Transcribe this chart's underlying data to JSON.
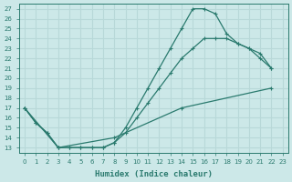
{
  "xlabel": "Humidex (Indice chaleur)",
  "xlim": [
    -0.5,
    23.5
  ],
  "ylim": [
    12.5,
    27.5
  ],
  "yticks": [
    13,
    14,
    15,
    16,
    17,
    18,
    19,
    20,
    21,
    22,
    23,
    24,
    25,
    26,
    27
  ],
  "xticks": [
    0,
    1,
    2,
    3,
    4,
    5,
    6,
    7,
    8,
    9,
    10,
    11,
    12,
    13,
    14,
    15,
    16,
    17,
    18,
    19,
    20,
    21,
    22,
    23
  ],
  "bg_color": "#cce8e8",
  "grid_color": "#b8d8d8",
  "line_color": "#2a7a6e",
  "line1_x": [
    0,
    1,
    2,
    3,
    4,
    5,
    6,
    7,
    8,
    9,
    10,
    11,
    12,
    13,
    14,
    15,
    16,
    17,
    18,
    19,
    20,
    21,
    22
  ],
  "line1_y": [
    17,
    15.5,
    14.5,
    13,
    13,
    13,
    13,
    13,
    13.5,
    15,
    17,
    19,
    21,
    23,
    25,
    27,
    27,
    26.5,
    24.5,
    23.5,
    23,
    22.5,
    21
  ],
  "line2_x": [
    0,
    1,
    2,
    3,
    4,
    5,
    6,
    7,
    8,
    9,
    10,
    11,
    12,
    13,
    14,
    15,
    16,
    17,
    18,
    19,
    20,
    21,
    22
  ],
  "line2_y": [
    17,
    15.5,
    14.5,
    13,
    13,
    13,
    13,
    13,
    13.5,
    14.5,
    16,
    17.5,
    19,
    20.5,
    22,
    23,
    24,
    24,
    24,
    23.5,
    23,
    22,
    21
  ],
  "line3_x": [
    0,
    3,
    8,
    14,
    22
  ],
  "line3_y": [
    17,
    13,
    14,
    17,
    19
  ]
}
